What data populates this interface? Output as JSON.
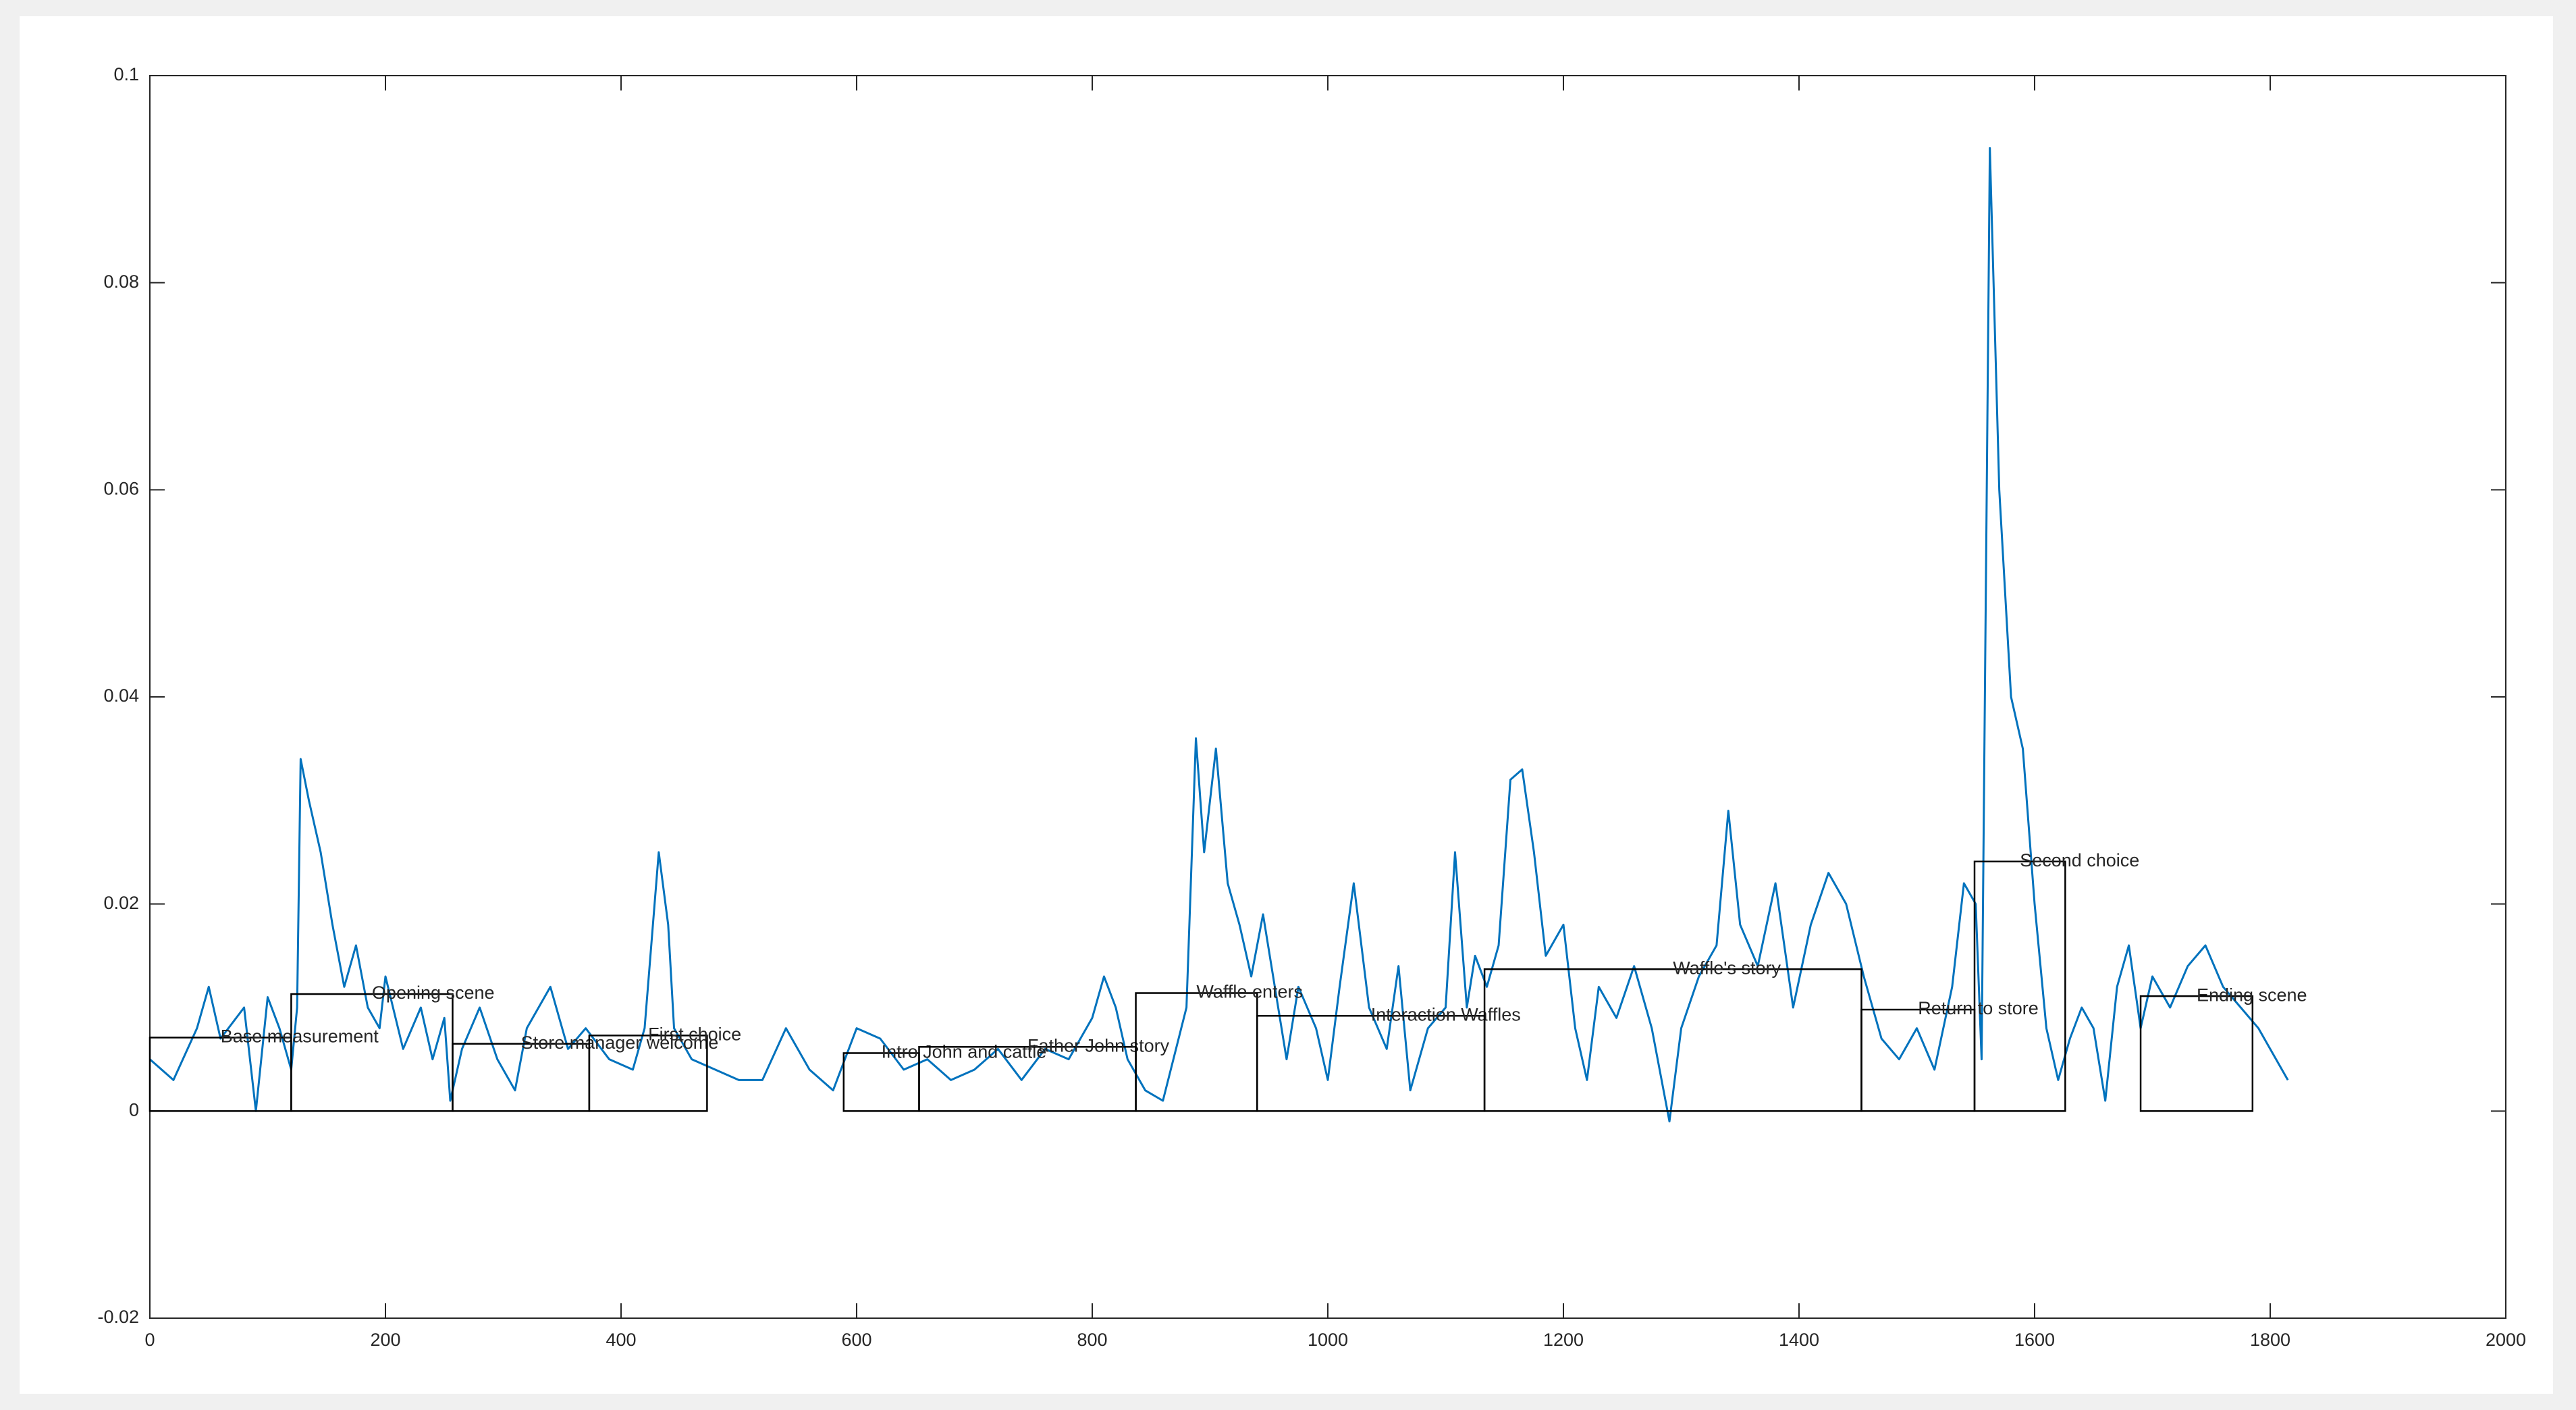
{
  "chart_data": {
    "type": "line",
    "x": [
      0,
      20,
      40,
      50,
      60,
      80,
      90,
      100,
      110,
      120,
      125,
      128,
      135,
      145,
      155,
      165,
      175,
      185,
      195,
      200,
      215,
      230,
      240,
      250,
      255,
      265,
      280,
      295,
      310,
      320,
      340,
      355,
      370,
      390,
      410,
      420,
      432,
      440,
      445,
      460,
      480,
      500,
      520,
      540,
      560,
      580,
      600,
      620,
      640,
      660,
      680,
      700,
      720,
      740,
      760,
      780,
      800,
      810,
      820,
      830,
      845,
      860,
      880,
      888,
      895,
      905,
      915,
      925,
      935,
      945,
      955,
      965,
      975,
      990,
      1000,
      1010,
      1022,
      1035,
      1050,
      1060,
      1070,
      1085,
      1100,
      1108,
      1118,
      1125,
      1135,
      1145,
      1155,
      1165,
      1175,
      1185,
      1200,
      1210,
      1220,
      1230,
      1245,
      1260,
      1275,
      1290,
      1300,
      1315,
      1330,
      1340,
      1350,
      1365,
      1380,
      1395,
      1410,
      1425,
      1440,
      1455,
      1470,
      1485,
      1500,
      1515,
      1530,
      1540,
      1550,
      1555,
      1562,
      1570,
      1580,
      1590,
      1600,
      1610,
      1620,
      1630,
      1640,
      1650,
      1660,
      1670,
      1680,
      1690,
      1700,
      1715,
      1730,
      1745,
      1760,
      1775,
      1790,
      1800,
      1815
    ],
    "series": [
      {
        "color": "#0072bd",
        "values": [
          0.005,
          0.003,
          0.008,
          0.012,
          0.007,
          0.01,
          0,
          0.011,
          0.008,
          0.004,
          0.01,
          0.034,
          0.03,
          0.025,
          0.018,
          0.012,
          0.016,
          0.01,
          0.008,
          0.013,
          0.006,
          0.01,
          0.005,
          0.009,
          0.001,
          0.006,
          0.01,
          0.005,
          0.002,
          0.008,
          0.012,
          0.006,
          0.008,
          0.005,
          0.004,
          0.008,
          0.025,
          0.018,
          0.008,
          0.005,
          0.004,
          0.003,
          0.003,
          0.008,
          0.004,
          0.002,
          0.008,
          0.007,
          0.004,
          0.005,
          0.003,
          0.004,
          0.006,
          0.003,
          0.006,
          0.005,
          0.009,
          0.013,
          0.01,
          0.005,
          0.002,
          0.001,
          0.01,
          0.036,
          0.025,
          0.035,
          0.022,
          0.018,
          0.013,
          0.019,
          0.012,
          0.005,
          0.012,
          0.008,
          0.003,
          0.012,
          0.022,
          0.01,
          0.006,
          0.014,
          0.002,
          0.008,
          0.01,
          0.025,
          0.01,
          0.015,
          0.012,
          0.016,
          0.032,
          0.033,
          0.025,
          0.015,
          0.018,
          0.008,
          0.003,
          0.012,
          0.009,
          0.014,
          0.008,
          -0.001,
          0.008,
          0.013,
          0.016,
          0.029,
          0.018,
          0.014,
          0.022,
          0.01,
          0.018,
          0.023,
          0.02,
          0.013,
          0.007,
          0.005,
          0.008,
          0.004,
          0.012,
          0.022,
          0.02,
          0.005,
          0.093,
          0.06,
          0.04,
          0.035,
          0.02,
          0.008,
          0.003,
          0.007,
          0.01,
          0.008,
          0.001,
          0.012,
          0.016,
          0.008,
          0.013,
          0.01,
          0.014,
          0.016,
          0.012,
          0.01,
          0.008,
          0.006,
          0.003
        ]
      }
    ],
    "regions": [
      {
        "label": "Base measurement",
        "x": [
          0,
          120
        ],
        "height": 0.0071
      },
      {
        "label": "Opening scene",
        "x": [
          120,
          257
        ],
        "height": 0.0113
      },
      {
        "label": "Store manager welcome",
        "x": [
          257,
          373
        ],
        "height": 0.0065
      },
      {
        "label": "First choice",
        "x": [
          373,
          473
        ],
        "height": 0.0073
      },
      {
        "label": "Intro John and cattle",
        "x": [
          589,
          653
        ],
        "height": 0.0056
      },
      {
        "label": "Father John story",
        "x": [
          653,
          837
        ],
        "height": 0.0062
      },
      {
        "label": "Waffle enters",
        "x": [
          837,
          940
        ],
        "height": 0.0114
      },
      {
        "label": "Interaction Waffles",
        "x": [
          940,
          1133
        ],
        "height": 0.0092
      },
      {
        "label": "Waffle's story",
        "x": [
          1133,
          1453
        ],
        "height": 0.0137
      },
      {
        "label": "Return to store",
        "x": [
          1453,
          1549
        ],
        "height": 0.0098
      },
      {
        "label": "Second choice",
        "x": [
          1549,
          1626
        ],
        "height": 0.0241
      },
      {
        "label": "Ending scene",
        "x": [
          1690,
          1785
        ],
        "height": 0.0111
      }
    ],
    "xlim": [
      0,
      2000
    ],
    "xticks": [
      0,
      200,
      400,
      600,
      800,
      1000,
      1200,
      1400,
      1600,
      1800,
      2000
    ],
    "ylim": [
      -0.02,
      0.1
    ],
    "yticks": [
      -0.02,
      0,
      0.02,
      0.04,
      0.06,
      0.08,
      0.1
    ]
  }
}
